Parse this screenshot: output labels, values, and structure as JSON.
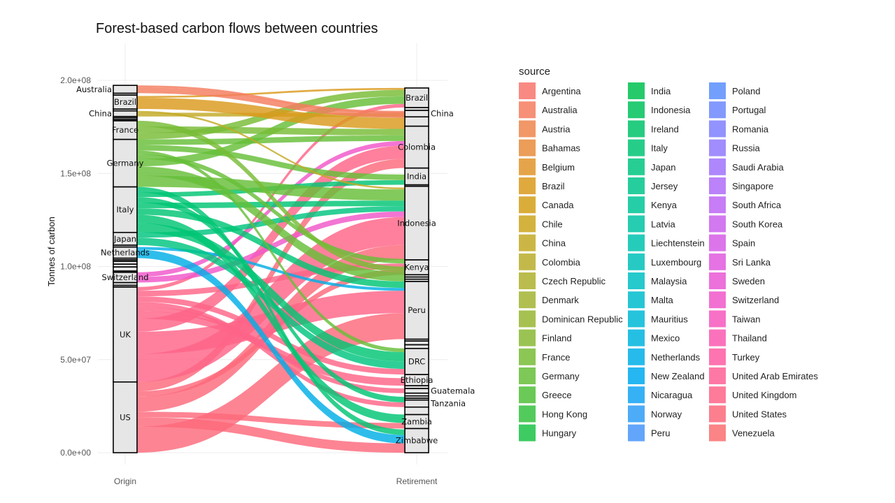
{
  "chart_data": {
    "type": "alluvial",
    "title": "Forest-based carbon flows between countries",
    "xlabel": "",
    "ylabel": "Tonnes of carbon",
    "axes": [
      "Origin",
      "Retirement"
    ],
    "y_ticks": [
      "0.0e+00",
      "5.0e+07",
      "1.0e+08",
      "1.5e+08",
      "2.0e+08"
    ],
    "y_tick_values": [
      0,
      50000000,
      100000000,
      150000000,
      200000000
    ],
    "ylim": [
      0,
      210000000
    ],
    "grid": true,
    "legend_title": "source",
    "legend_position": "right",
    "origin_strata": [
      {
        "name": "US",
        "value": 38000000
      },
      {
        "name": "UK",
        "value": 51000000
      },
      {
        "name": "",
        "value": 900000
      },
      {
        "name": "",
        "value": 1500000
      },
      {
        "name": "Switzerland",
        "value": 5500000
      },
      {
        "name": "",
        "value": 700000
      },
      {
        "name": "",
        "value": 2200000
      },
      {
        "name": "",
        "value": 1500000
      },
      {
        "name": "",
        "value": 1500000
      },
      {
        "name": "",
        "value": 800000
      },
      {
        "name": "",
        "value": 900000
      },
      {
        "name": "Netherlands",
        "value": 6000000
      },
      {
        "name": "",
        "value": 1000000
      },
      {
        "name": "Japan",
        "value": 6800000
      },
      {
        "name": "Italy",
        "value": 24500000
      },
      {
        "name": "Germany",
        "value": 25500000
      },
      {
        "name": "France",
        "value": 10000000
      },
      {
        "name": "",
        "value": 700000
      },
      {
        "name": "",
        "value": 900000
      },
      {
        "name": "",
        "value": 700000
      },
      {
        "name": "China",
        "value": 3000000
      },
      {
        "name": "",
        "value": 1000000
      },
      {
        "name": "Brazil",
        "value": 7500000
      },
      {
        "name": "",
        "value": 1000000
      },
      {
        "name": "Australia",
        "value": 4200000
      }
    ],
    "retirement_strata": [
      {
        "name": "Zimbabwe",
        "value": 13000000
      },
      {
        "name": "Zambia",
        "value": 7500000
      },
      {
        "name": "",
        "value": 4000000
      },
      {
        "name": "Tanzania",
        "value": 3800000
      },
      {
        "name": "",
        "value": 1000000
      },
      {
        "name": "",
        "value": 1200000
      },
      {
        "name": "",
        "value": 1500000
      },
      {
        "name": "Guatemala",
        "value": 2500000
      },
      {
        "name": "",
        "value": 1500000
      },
      {
        "name": "Ethiopia",
        "value": 6000000
      },
      {
        "name": "DRC",
        "value": 14000000
      },
      {
        "name": "",
        "value": 2000000
      },
      {
        "name": "",
        "value": 2000000
      },
      {
        "name": "",
        "value": 1000000
      },
      {
        "name": "Peru",
        "value": 31000000
      },
      {
        "name": "",
        "value": 1200000
      },
      {
        "name": "",
        "value": 1200000
      },
      {
        "name": "",
        "value": 1200000
      },
      {
        "name": "Kenya",
        "value": 8000000
      },
      {
        "name": "Indonesia",
        "value": 39500000
      },
      {
        "name": "",
        "value": 800000
      },
      {
        "name": "India",
        "value": 9000000
      },
      {
        "name": "Colombia",
        "value": 22500000
      },
      {
        "name": "",
        "value": 5000000
      },
      {
        "name": "China",
        "value": 3500000
      },
      {
        "name": "",
        "value": 1500000
      },
      {
        "name": "Brazil",
        "value": 10500000
      }
    ],
    "flows": [
      {
        "source": "US",
        "from": "US",
        "to": "Peru",
        "value": 14000000
      },
      {
        "source": "US",
        "from": "US",
        "to": "Zimbabwe",
        "value": 5000000
      },
      {
        "source": "US",
        "from": "US",
        "to": "Zambia",
        "value": 3000000
      },
      {
        "source": "US",
        "from": "US",
        "to": "Indonesia",
        "value": 8000000
      },
      {
        "source": "US",
        "from": "US",
        "to": "Kenya",
        "value": 3000000
      },
      {
        "source": "US",
        "from": "US",
        "to": "Colombia",
        "value": 5000000
      },
      {
        "source": "UK",
        "from": "UK",
        "to": "Indonesia",
        "value": 15000000
      },
      {
        "source": "UK",
        "from": "UK",
        "to": "Peru",
        "value": 12000000
      },
      {
        "source": "UK",
        "from": "UK",
        "to": "Colombia",
        "value": 7000000
      },
      {
        "source": "UK",
        "from": "UK",
        "to": "Ethiopia",
        "value": 4000000
      },
      {
        "source": "UK",
        "from": "UK",
        "to": "Guatemala",
        "value": 2500000
      },
      {
        "source": "UK",
        "from": "UK",
        "to": "Tanzania",
        "value": 2500000
      },
      {
        "source": "UK",
        "from": "UK",
        "to": "DRC",
        "value": 3000000
      },
      {
        "source": "UK",
        "from": "UK",
        "to": "Kenya",
        "value": 3000000
      },
      {
        "source": "UK",
        "from": "UK",
        "to": "Brazil",
        "value": 2000000
      },
      {
        "source": "Switzerland",
        "from": "Switzerland",
        "to": "Indonesia",
        "value": 3000000
      },
      {
        "source": "Switzerland",
        "from": "Switzerland",
        "to": "Colombia",
        "value": 2500000
      },
      {
        "source": "Netherlands",
        "from": "Netherlands",
        "to": "Zimbabwe",
        "value": 4500000
      },
      {
        "source": "Netherlands",
        "from": "Netherlands",
        "to": "Peru",
        "value": 1500000
      },
      {
        "source": "Japan",
        "from": "Japan",
        "to": "DRC",
        "value": 4000000
      },
      {
        "source": "Japan",
        "from": "Japan",
        "to": "Indonesia",
        "value": 2800000
      },
      {
        "source": "Italy",
        "from": "Italy",
        "to": "DRC",
        "value": 5000000
      },
      {
        "source": "Italy",
        "from": "Italy",
        "to": "Zambia",
        "value": 4500000
      },
      {
        "source": "Italy",
        "from": "Italy",
        "to": "Peru",
        "value": 3500000
      },
      {
        "source": "Italy",
        "from": "Italy",
        "to": "Indonesia",
        "value": 3000000
      },
      {
        "source": "Italy",
        "from": "Italy",
        "to": "Tanzania",
        "value": 3000000
      },
      {
        "source": "Italy",
        "from": "Italy",
        "to": "India",
        "value": 2500000
      },
      {
        "source": "Italy",
        "from": "Italy",
        "to": "Zimbabwe",
        "value": 3000000
      },
      {
        "source": "Germany",
        "from": "Germany",
        "to": "Indonesia",
        "value": 6000000
      },
      {
        "source": "Germany",
        "from": "Germany",
        "to": "Peru",
        "value": 5000000
      },
      {
        "source": "Germany",
        "from": "Germany",
        "to": "Brazil",
        "value": 4000000
      },
      {
        "source": "Germany",
        "from": "Germany",
        "to": "Kenya",
        "value": 2500000
      },
      {
        "source": "Germany",
        "from": "Germany",
        "to": "DRC",
        "value": 2000000
      },
      {
        "source": "Germany",
        "from": "Germany",
        "to": "India",
        "value": 3000000
      },
      {
        "source": "Germany",
        "from": "Germany",
        "to": "Colombia",
        "value": 3000000
      },
      {
        "source": "France",
        "from": "France",
        "to": "Brazil",
        "value": 3500000
      },
      {
        "source": "France",
        "from": "France",
        "to": "Colombia",
        "value": 3500000
      },
      {
        "source": "France",
        "from": "France",
        "to": "Peru",
        "value": 3000000
      },
      {
        "source": "China",
        "from": "China",
        "to": "China",
        "value": 2000000
      },
      {
        "source": "China",
        "from": "China",
        "to": "Indonesia",
        "value": 1000000
      },
      {
        "source": "Brazil",
        "from": "Brazil",
        "to": "Colombia",
        "value": 6000000
      },
      {
        "source": "Brazil",
        "from": "Brazil",
        "to": "Brazil",
        "value": 1000000
      },
      {
        "source": "Australia",
        "from": "Australia",
        "to": "Colombia",
        "value": 3000000
      },
      {
        "source": "Australia",
        "from": "Australia",
        "to": "China",
        "value": 1200000
      }
    ],
    "legend_columns": [
      [
        {
          "label": "Argentina",
          "color": "#F8766D"
        },
        {
          "label": "Australia",
          "color": "#F47D5F"
        },
        {
          "label": "Austria",
          "color": "#EE854E"
        },
        {
          "label": "Bahamas",
          "color": "#E88C3C"
        },
        {
          "label": "Belgium",
          "color": "#E2942A"
        },
        {
          "label": "Brazil",
          "color": "#DB9A1C"
        },
        {
          "label": "Canada",
          "color": "#D39F18"
        },
        {
          "label": "Chile",
          "color": "#CBA51C"
        },
        {
          "label": "China",
          "color": "#C2A924"
        },
        {
          "label": "Colombia",
          "color": "#B8AD2A"
        },
        {
          "label": "Czech Republic",
          "color": "#AEB02E"
        },
        {
          "label": "Denmark",
          "color": "#A3B331"
        },
        {
          "label": "Dominican Republic",
          "color": "#96B633"
        },
        {
          "label": "Finland",
          "color": "#88B935"
        },
        {
          "label": "France",
          "color": "#78BC36"
        },
        {
          "label": "Germany",
          "color": "#66BE38"
        },
        {
          "label": "Greece",
          "color": "#50C03A"
        },
        {
          "label": "Hong Kong",
          "color": "#35C13F"
        },
        {
          "label": "Hungary",
          "color": "#1BC247"
        }
      ],
      [
        {
          "label": "India",
          "color": "#00C150"
        },
        {
          "label": "Indonesia",
          "color": "#00C25C"
        },
        {
          "label": "Ireland",
          "color": "#00C368"
        },
        {
          "label": "Italy",
          "color": "#00C474"
        },
        {
          "label": "Japan",
          "color": "#00C580"
        },
        {
          "label": "Jersey",
          "color": "#00C58C"
        },
        {
          "label": "Kenya",
          "color": "#00C598"
        },
        {
          "label": "Latvia",
          "color": "#00C4A3"
        },
        {
          "label": "Liechtenstein",
          "color": "#00C3AE"
        },
        {
          "label": "Luxembourg",
          "color": "#00C1B9"
        },
        {
          "label": "Malaysia",
          "color": "#00BFC3"
        },
        {
          "label": "Malta",
          "color": "#00BCCD"
        },
        {
          "label": "Mauritius",
          "color": "#00B8D6"
        },
        {
          "label": "Mexico",
          "color": "#00B4DF"
        },
        {
          "label": "Netherlands",
          "color": "#00AFE7"
        },
        {
          "label": "New Zealand",
          "color": "#00A9EE"
        },
        {
          "label": "Nicaragua",
          "color": "#13A3F3"
        },
        {
          "label": "Norway",
          "color": "#2F9CF7"
        },
        {
          "label": "Peru",
          "color": "#4695FA"
        }
      ],
      [
        {
          "label": "Poland",
          "color": "#5A8EFC"
        },
        {
          "label": "Portugal",
          "color": "#6D87FD"
        },
        {
          "label": "Romania",
          "color": "#7F80FE"
        },
        {
          "label": "Russia",
          "color": "#9079FD"
        },
        {
          "label": "Saudi Arabia",
          "color": "#A072FB"
        },
        {
          "label": "Singapore",
          "color": "#AF6CF8"
        },
        {
          "label": "South Africa",
          "color": "#BD66F3"
        },
        {
          "label": "South Korea",
          "color": "#CA61ED"
        },
        {
          "label": "Spain",
          "color": "#D65DE6"
        },
        {
          "label": "Sri Lanka",
          "color": "#E05ADE"
        },
        {
          "label": "Sweden",
          "color": "#E958D4"
        },
        {
          "label": "Switzerland",
          "color": "#F057C9"
        },
        {
          "label": "Taiwan",
          "color": "#F658BD"
        },
        {
          "label": "Thailand",
          "color": "#FA59B0"
        },
        {
          "label": "Turkey",
          "color": "#FD5CA2"
        },
        {
          "label": "United Arab Emirates",
          "color": "#FE6095"
        },
        {
          "label": "United Kingdom",
          "color": "#FE6488"
        },
        {
          "label": "United States",
          "color": "#FC697B"
        },
        {
          "label": "Venezuela",
          "color": "#F96E71"
        }
      ]
    ]
  }
}
